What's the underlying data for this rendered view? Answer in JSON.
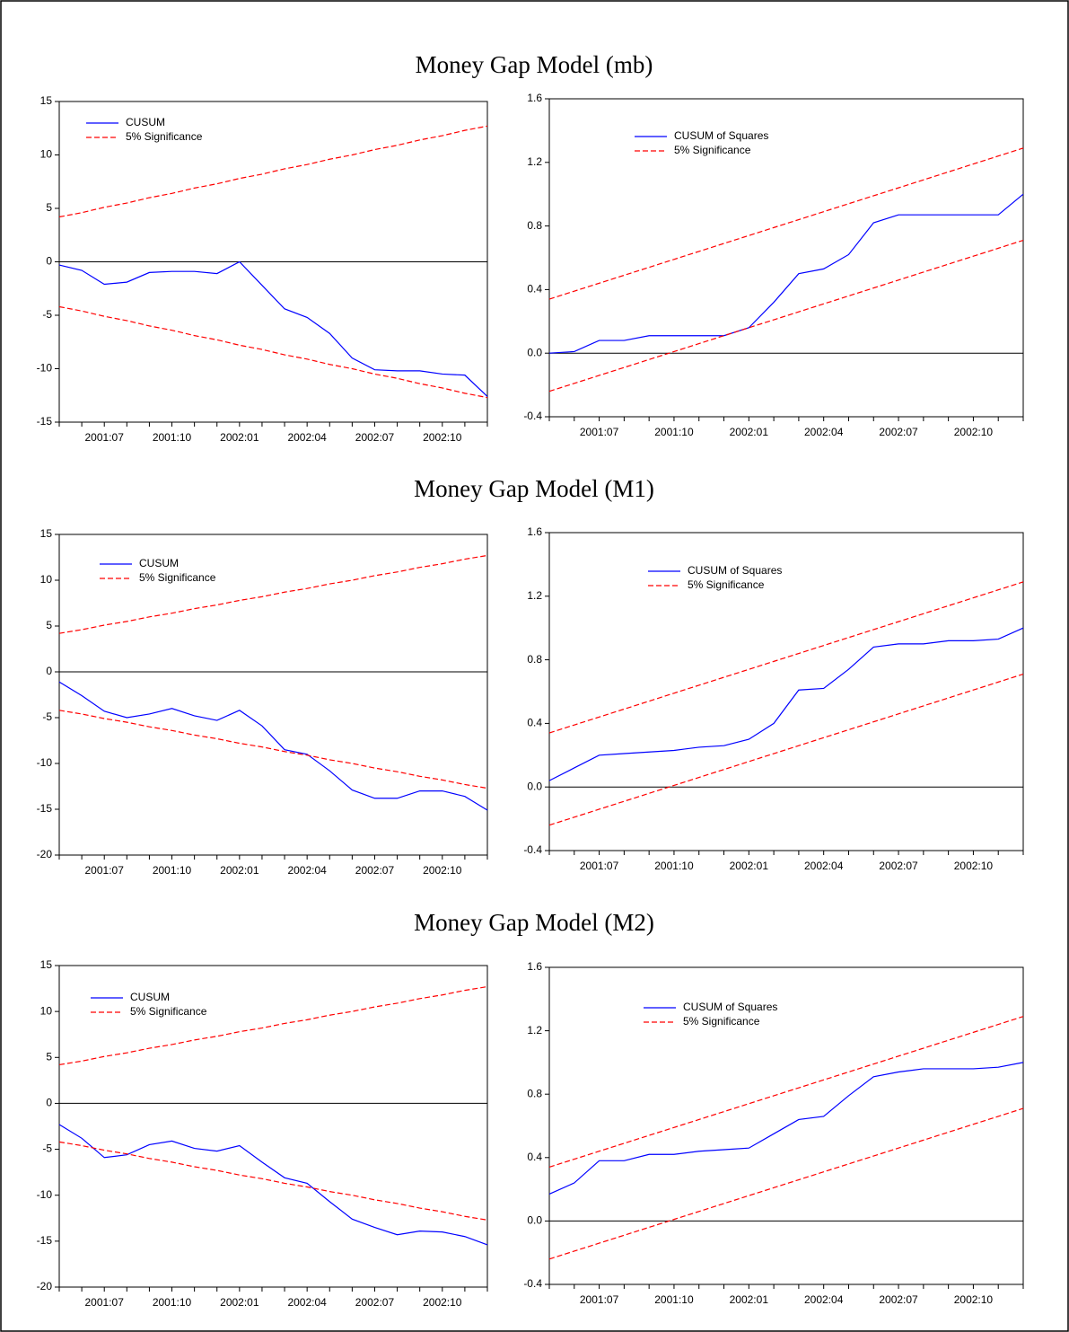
{
  "chart_data": [
    {
      "type": "line",
      "title": "Money Gap Model (mb)",
      "categories": [
        null,
        null,
        "2001:07",
        null,
        null,
        "2001:10",
        null,
        null,
        "2002:01",
        null,
        null,
        "2002:04",
        null,
        null,
        "2002:07",
        null,
        null,
        "2002:10",
        null,
        null
      ],
      "ylim": [
        -15,
        15
      ],
      "yticks": [
        -15,
        -10,
        -5,
        0,
        5,
        10,
        15
      ],
      "legend": "upper left",
      "series": [
        {
          "name": "CUSUM",
          "color": "#0000ff",
          "values": [
            -0.3,
            -0.8,
            -2.1,
            -1.9,
            -1.0,
            -0.9,
            -0.9,
            -1.1,
            0.0,
            -2.2,
            -4.4,
            -5.2,
            -6.7,
            -9.0,
            -10.1,
            -10.2,
            -10.2,
            -10.5,
            -10.6,
            -12.6
          ]
        },
        {
          "name": "5% Significance",
          "color": "#ff0000",
          "dashed": true,
          "values": [
            4.2,
            4.6,
            5.1,
            5.5,
            6.0,
            6.4,
            6.9,
            7.3,
            7.8,
            8.2,
            8.7,
            9.1,
            9.6,
            10.0,
            10.5,
            10.9,
            11.4,
            11.8,
            12.3,
            12.7
          ]
        },
        {
          "color": "#ff0000",
          "dashed": true,
          "values": [
            -4.2,
            -4.6,
            -5.1,
            -5.5,
            -6.0,
            -6.4,
            -6.9,
            -7.3,
            -7.8,
            -8.2,
            -8.7,
            -9.1,
            -9.6,
            -10.0,
            -10.5,
            -10.9,
            -11.4,
            -11.8,
            -12.3,
            -12.7
          ]
        }
      ]
    },
    {
      "type": "line",
      "categories": [
        null,
        null,
        "2001:07",
        null,
        null,
        "2001:10",
        null,
        null,
        "2002:01",
        null,
        null,
        "2002:04",
        null,
        null,
        "2002:07",
        null,
        null,
        "2002:10",
        null,
        null
      ],
      "ylim": [
        -0.4,
        1.6
      ],
      "yticks": [
        -0.4,
        {
          "value": 0,
          "label": "0.0"
        },
        0.4,
        0.8,
        1.2,
        1.6
      ],
      "legend": "upper left",
      "series": [
        {
          "name": "CUSUM of Squares",
          "color": "#0000ff",
          "values": [
            0.0,
            0.01,
            0.08,
            0.08,
            0.11,
            0.11,
            0.11,
            0.11,
            0.16,
            0.32,
            0.5,
            0.53,
            0.62,
            0.82,
            0.87,
            0.87,
            0.87,
            0.87,
            0.87,
            1.0
          ]
        },
        {
          "name": "5% Significance",
          "color": "#ff0000",
          "dashed": true,
          "values": [
            0.34,
            0.39,
            0.44,
            0.49,
            0.54,
            0.59,
            0.64,
            0.69,
            0.74,
            0.79,
            0.84,
            0.89,
            0.94,
            0.99,
            1.04,
            1.09,
            1.14,
            1.19,
            1.24,
            1.29
          ]
        },
        {
          "color": "#ff0000",
          "dashed": true,
          "values": [
            -0.24,
            -0.19,
            -0.14,
            -0.09,
            -0.04,
            0.01,
            0.06,
            0.11,
            0.16,
            0.21,
            0.26,
            0.31,
            0.36,
            0.41,
            0.46,
            0.51,
            0.56,
            0.61,
            0.66,
            0.71
          ]
        }
      ]
    },
    {
      "type": "line",
      "title": "Money Gap Model (M1)",
      "categories": [
        null,
        null,
        "2001:07",
        null,
        null,
        "2001:10",
        null,
        null,
        "2002:01",
        null,
        null,
        "2002:04",
        null,
        null,
        "2002:07",
        null,
        null,
        "2002:10",
        null,
        null
      ],
      "ylim": [
        -20,
        15
      ],
      "yticks": [
        -20,
        -15,
        -10,
        -5,
        0,
        5,
        10,
        15
      ],
      "legend": "upper left",
      "series": [
        {
          "name": "CUSUM",
          "color": "#0000ff",
          "values": [
            -1.1,
            -2.6,
            -4.3,
            -5.0,
            -4.6,
            -4.0,
            -4.8,
            -5.3,
            -4.2,
            -5.9,
            -8.5,
            -9.0,
            -10.8,
            -12.9,
            -13.8,
            -13.8,
            -13.0,
            -13.0,
            -13.6,
            -15.1
          ]
        },
        {
          "name": "5% Significance",
          "color": "#ff0000",
          "dashed": true,
          "values": [
            4.2,
            4.6,
            5.1,
            5.5,
            6.0,
            6.4,
            6.9,
            7.3,
            7.8,
            8.2,
            8.7,
            9.1,
            9.6,
            10.0,
            10.5,
            10.9,
            11.4,
            11.8,
            12.3,
            12.7
          ]
        },
        {
          "color": "#ff0000",
          "dashed": true,
          "values": [
            -4.2,
            -4.6,
            -5.1,
            -5.5,
            -6.0,
            -6.4,
            -6.9,
            -7.3,
            -7.8,
            -8.2,
            -8.7,
            -9.1,
            -9.6,
            -10.0,
            -10.5,
            -10.9,
            -11.4,
            -11.8,
            -12.3,
            -12.7
          ]
        }
      ]
    },
    {
      "type": "line",
      "categories": [
        null,
        null,
        "2001:07",
        null,
        null,
        "2001:10",
        null,
        null,
        "2002:01",
        null,
        null,
        "2002:04",
        null,
        null,
        "2002:07",
        null,
        null,
        "2002:10",
        null,
        null
      ],
      "ylim": [
        -0.4,
        1.6
      ],
      "yticks": [
        -0.4,
        {
          "value": 0,
          "label": "0.0"
        },
        0.4,
        0.8,
        1.2,
        1.6
      ],
      "legend": "upper left",
      "series": [
        {
          "name": "CUSUM of Squares",
          "color": "#0000ff",
          "values": [
            0.04,
            0.12,
            0.2,
            0.21,
            0.22,
            0.23,
            0.25,
            0.26,
            0.3,
            0.4,
            0.61,
            0.62,
            0.74,
            0.88,
            0.9,
            0.9,
            0.92,
            0.92,
            0.93,
            1.0
          ]
        },
        {
          "name": "5% Significance",
          "color": "#ff0000",
          "dashed": true,
          "values": [
            0.34,
            0.39,
            0.44,
            0.49,
            0.54,
            0.59,
            0.64,
            0.69,
            0.74,
            0.79,
            0.84,
            0.89,
            0.94,
            0.99,
            1.04,
            1.09,
            1.14,
            1.19,
            1.24,
            1.29
          ]
        },
        {
          "color": "#ff0000",
          "dashed": true,
          "values": [
            -0.24,
            -0.19,
            -0.14,
            -0.09,
            -0.04,
            0.01,
            0.06,
            0.11,
            0.16,
            0.21,
            0.26,
            0.31,
            0.36,
            0.41,
            0.46,
            0.51,
            0.56,
            0.61,
            0.66,
            0.71
          ]
        }
      ]
    },
    {
      "type": "line",
      "title": "Money Gap Model (M2)",
      "categories": [
        null,
        null,
        "2001:07",
        null,
        null,
        "2001:10",
        null,
        null,
        "2002:01",
        null,
        null,
        "2002:04",
        null,
        null,
        "2002:07",
        null,
        null,
        "2002:10",
        null,
        null
      ],
      "ylim": [
        -20,
        15
      ],
      "yticks": [
        -20,
        -15,
        -10,
        -5,
        0,
        5,
        10,
        15
      ],
      "legend": "upper left",
      "series": [
        {
          "name": "CUSUM",
          "color": "#0000ff",
          "values": [
            -2.3,
            -3.8,
            -5.9,
            -5.6,
            -4.5,
            -4.1,
            -4.9,
            -5.2,
            -4.6,
            -6.4,
            -8.1,
            -8.7,
            -10.7,
            -12.6,
            -13.5,
            -14.3,
            -13.9,
            -14.0,
            -14.5,
            -15.4
          ]
        },
        {
          "name": "5% Significance",
          "color": "#ff0000",
          "dashed": true,
          "values": [
            4.2,
            4.6,
            5.1,
            5.5,
            6.0,
            6.4,
            6.9,
            7.3,
            7.8,
            8.2,
            8.7,
            9.1,
            9.6,
            10.0,
            10.5,
            10.9,
            11.4,
            11.8,
            12.3,
            12.7
          ]
        },
        {
          "color": "#ff0000",
          "dashed": true,
          "values": [
            -4.2,
            -4.6,
            -5.1,
            -5.5,
            -6.0,
            -6.4,
            -6.9,
            -7.3,
            -7.8,
            -8.2,
            -8.7,
            -9.1,
            -9.6,
            -10.0,
            -10.5,
            -10.9,
            -11.4,
            -11.8,
            -12.3,
            -12.7
          ]
        }
      ]
    },
    {
      "type": "line",
      "categories": [
        null,
        null,
        "2001:07",
        null,
        null,
        "2001:10",
        null,
        null,
        "2002:01",
        null,
        null,
        "2002:04",
        null,
        null,
        "2002:07",
        null,
        null,
        "2002:10",
        null,
        null
      ],
      "ylim": [
        -0.4,
        1.6
      ],
      "yticks": [
        -0.4,
        {
          "value": 0,
          "label": "0.0"
        },
        0.4,
        0.8,
        1.2,
        1.6
      ],
      "legend": "upper left",
      "series": [
        {
          "name": "CUSUM of Squares",
          "color": "#0000ff",
          "values": [
            0.17,
            0.24,
            0.38,
            0.38,
            0.42,
            0.42,
            0.44,
            0.45,
            0.46,
            0.55,
            0.64,
            0.66,
            0.79,
            0.91,
            0.94,
            0.96,
            0.96,
            0.96,
            0.97,
            1.0
          ]
        },
        {
          "name": "5% Significance",
          "color": "#ff0000",
          "dashed": true,
          "values": [
            0.34,
            0.39,
            0.44,
            0.49,
            0.54,
            0.59,
            0.64,
            0.69,
            0.74,
            0.79,
            0.84,
            0.89,
            0.94,
            0.99,
            1.04,
            1.09,
            1.14,
            1.19,
            1.24,
            1.29
          ]
        },
        {
          "color": "#ff0000",
          "dashed": true,
          "values": [
            -0.24,
            -0.19,
            -0.14,
            -0.09,
            -0.04,
            0.01,
            0.06,
            0.11,
            0.16,
            0.21,
            0.26,
            0.31,
            0.36,
            0.41,
            0.46,
            0.51,
            0.56,
            0.61,
            0.66,
            0.71
          ]
        }
      ]
    }
  ]
}
